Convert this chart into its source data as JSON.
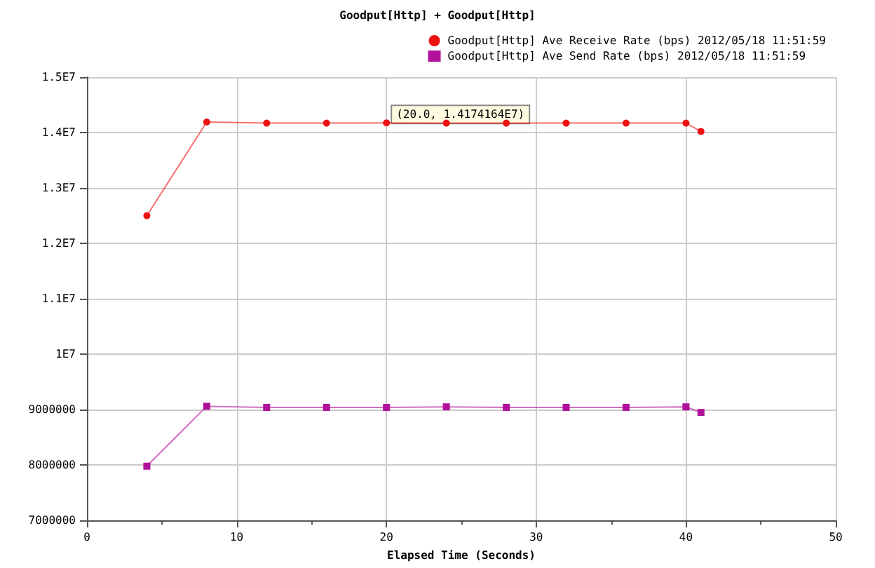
{
  "chart_data": {
    "type": "line",
    "title": "Goodput[Http] + Goodput[Http]",
    "xlabel": "Elapsed Time (Seconds)",
    "x": [
      4,
      8,
      12,
      16,
      20,
      24,
      28,
      32,
      36,
      40,
      41
    ],
    "series": [
      {
        "name": "Goodput[Http] Ave Receive Rate (bps) 2012/05/18 11:51:59",
        "color": "#ee1111",
        "marker": "circle",
        "values": [
          12500000,
          14190000,
          14170000,
          14170000,
          14174164,
          14170000,
          14170000,
          14170000,
          14170000,
          14170000,
          14020000
        ]
      },
      {
        "name": "Goodput[Http] Ave Send Rate (bps) 2012/05/18 11:51:59",
        "color": "#b0109a",
        "marker": "square",
        "values": [
          7980000,
          9060000,
          9040000,
          9040000,
          9040000,
          9050000,
          9040000,
          9040000,
          9040000,
          9050000,
          8950000
        ]
      }
    ],
    "xlim": [
      0,
      50
    ],
    "xticks": [
      0,
      10,
      20,
      30,
      40,
      50
    ],
    "ylim": [
      7000000,
      15000000
    ],
    "yticks": [
      7000000,
      8000000,
      9000000,
      {
        "value": 10000000,
        "label": "1E7"
      },
      {
        "value": 11000000,
        "label": "1.1E7"
      },
      {
        "value": 12000000,
        "label": "1.2E7"
      },
      {
        "value": 13000000,
        "label": "1.3E7"
      },
      {
        "value": 14000000,
        "label": "1.4E7"
      },
      {
        "value": 15000000,
        "label": "1.5E7"
      }
    ],
    "grid": true,
    "legend": "top right",
    "annotations": [
      {
        "text": "(20.0, 1.4174164E7)",
        "x": 20,
        "y": 14174164
      }
    ]
  }
}
